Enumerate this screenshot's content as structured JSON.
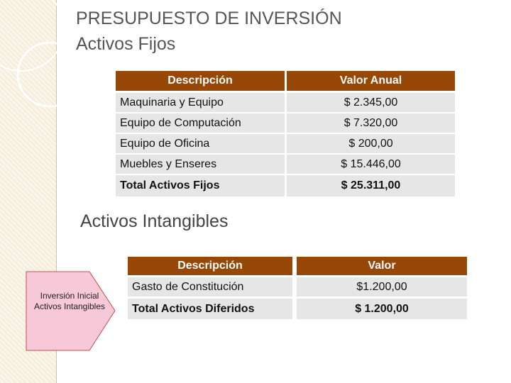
{
  "header": {
    "title": "PRESUPUESTO DE INVERSIÓN",
    "subtitle": "Activos Fijos"
  },
  "table": {
    "columns": [
      "Descripción",
      "Valor Anual"
    ],
    "rows": [
      [
        "Maquinaria y Equipo",
        "$ 2.345,00"
      ],
      [
        "Equipo de Computación",
        "$ 7.320,00"
      ],
      [
        "Equipo de Oficina",
        "$ 200,00"
      ],
      [
        "Muebles y Enseres",
        "$ 15.446,00"
      ],
      [
        "Total Activos Fijos",
        "$ 25.311,00"
      ]
    ]
  },
  "section": {
    "title": "Activos Intangibles"
  },
  "table2": {
    "columns": [
      "Descripción",
      "Valor"
    ],
    "rows": [
      [
        "Gasto de Constitución",
        "$1.200,00"
      ],
      [
        "Total Activos Diferidos",
        "$ 1.200,00"
      ]
    ]
  },
  "callout": {
    "text": "Inversión Inicial Activos Intangibles"
  }
}
